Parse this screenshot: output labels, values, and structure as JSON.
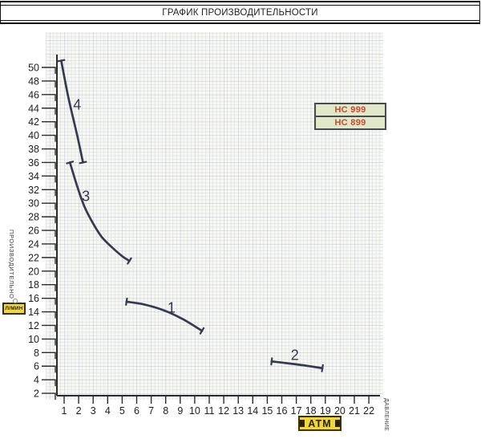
{
  "window": {
    "title": "ГРАФИК ПРОИЗВОДИТЕЛЬНОСТИ"
  },
  "legend": {
    "items": [
      {
        "label": "НС 999"
      },
      {
        "label": "НС 899"
      }
    ]
  },
  "axes": {
    "y": {
      "title_vertical": "ПРОИЗВОДИТЕЛЬНО",
      "unit_tag": "Л/МИН"
    },
    "x": {
      "title_vertical": "ДАВЛЕНИЕ",
      "unit_tag": "АТМ"
    }
  },
  "colors": {
    "pen": "#353a4c",
    "axis": "#2b2b2b",
    "tick_text": "#1e1e1e",
    "grid_minor": "#dde1e2",
    "grid_major": "#bdc3cc",
    "paper": "#f8f9f5",
    "legend_bg": "#dfe9ca",
    "legend_text": "#cf4634",
    "tag_bg": "#efd63b"
  },
  "chart_data": {
    "type": "line",
    "title": "ГРАФИК ПРОИЗВОДИТЕЛЬНОСТИ",
    "xlabel": "ДАВЛЕНИЕ, АТМ",
    "ylabel": "ПРОИЗВОДИТЕЛЬНО, Л/МИН",
    "xlim": [
      0,
      23
    ],
    "ylim": [
      0,
      52
    ],
    "grid": true,
    "legend_position": "top-right",
    "legend_entries": [
      "НС 999",
      "НС 899"
    ],
    "x_ticks": [
      1,
      2,
      3,
      4,
      5,
      6,
      7,
      8,
      9,
      10,
      11,
      12,
      13,
      14,
      15,
      16,
      17,
      18,
      19,
      20,
      21,
      22
    ],
    "y_ticks": [
      2,
      4,
      6,
      8,
      10,
      12,
      14,
      16,
      18,
      20,
      22,
      24,
      26,
      28,
      30,
      32,
      34,
      36,
      38,
      40,
      42,
      44,
      46,
      48,
      50
    ],
    "series": [
      {
        "name": "4",
        "points": [
          [
            0.8,
            51
          ],
          [
            1.3,
            45.5
          ],
          [
            1.9,
            40
          ],
          [
            2.3,
            36
          ]
        ],
        "label_at": [
          1.9,
          44.5
        ]
      },
      {
        "name": "3",
        "points": [
          [
            1.4,
            36
          ],
          [
            1.9,
            32.5
          ],
          [
            2.4,
            29.5
          ],
          [
            3.0,
            27
          ],
          [
            3.6,
            25
          ],
          [
            4.3,
            23.5
          ],
          [
            5.0,
            22.2
          ],
          [
            5.5,
            21.5
          ]
        ],
        "label_at": [
          2.5,
          31
        ]
      },
      {
        "name": "1",
        "points": [
          [
            5.3,
            15.5
          ],
          [
            6.5,
            15.1
          ],
          [
            7.9,
            14.2
          ],
          [
            9.2,
            12.9
          ],
          [
            10.5,
            11.2
          ]
        ],
        "label_at": [
          8.4,
          14.6
        ]
      },
      {
        "name": "2",
        "points": [
          [
            15.3,
            6.7
          ],
          [
            16.5,
            6.4
          ],
          [
            17.6,
            6.1
          ],
          [
            18.8,
            5.7
          ]
        ],
        "label_at": [
          16.9,
          7.6
        ]
      }
    ]
  }
}
